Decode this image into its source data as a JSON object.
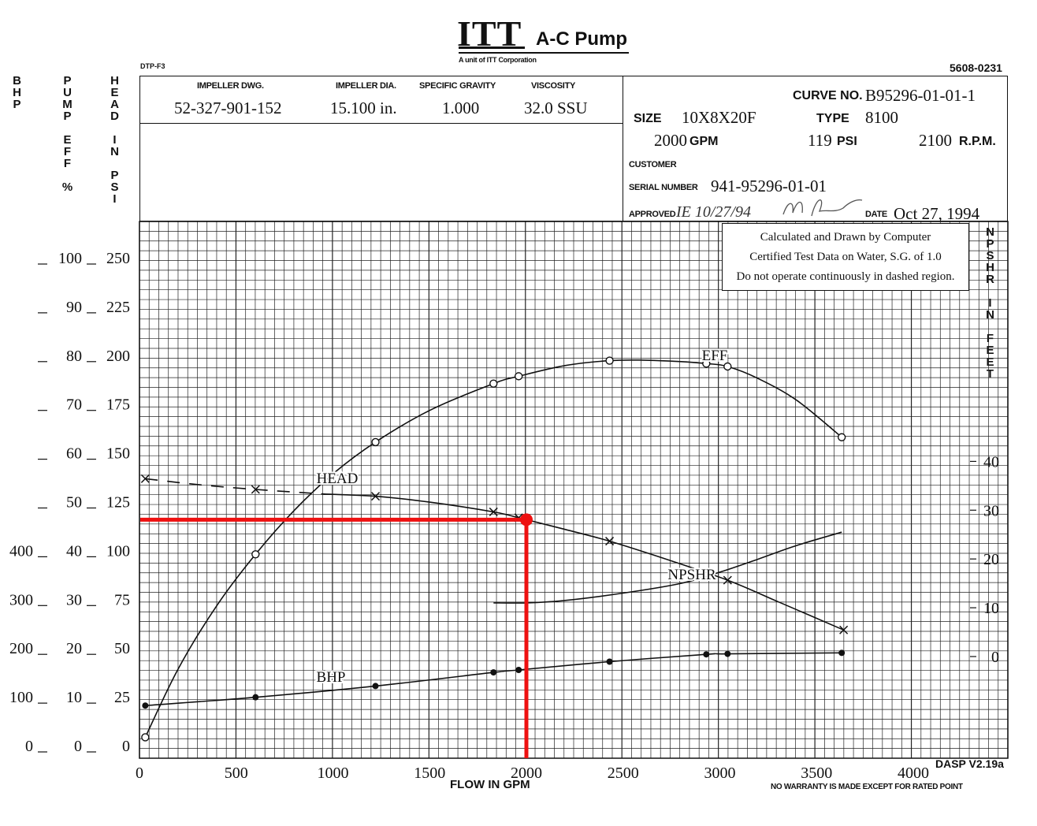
{
  "header": {
    "brand_logo": "ITT",
    "brand_name": "A-C Pump",
    "brand_tagline": "A unit of ITT Corporation",
    "form_code": "DTP-F3",
    "doc_number": "5608-0231"
  },
  "left_axis_titles": {
    "bhp": "BHP",
    "pump_eff": "PUMP EFF %",
    "head": "HEAD IN PSI"
  },
  "right_axis_title": "NPSHR IN FEET",
  "info": {
    "impeller_dwg_label": "IMPELLER DWG.",
    "impeller_dwg": "52-327-901-152",
    "impeller_dia_label": "IMPELLER DIA.",
    "impeller_dia": "15.100 in.",
    "specific_gravity_label": "SPECIFIC GRAVITY",
    "specific_gravity": "1.000",
    "viscosity_label": "VISCOSITY",
    "viscosity": "32.0 SSU",
    "curve_no_label": "CURVE NO.",
    "curve_no": "B95296-01-01-1",
    "size_label": "SIZE",
    "size": "10X8X20F",
    "type_label": "TYPE",
    "type": "8100",
    "flow": "2000",
    "flow_unit": "GPM",
    "head": "119",
    "head_unit": "PSI",
    "speed": "2100",
    "speed_unit": "R.P.M.",
    "customer_label": "CUSTOMER",
    "serial_label": "SERIAL NUMBER",
    "serial": "941-95296-01-01",
    "approved_label": "APPROVED",
    "approved_signature": "IE 10/27/94",
    "date_label": "DATE",
    "date": "Oct 27, 1994"
  },
  "notes": {
    "line1": "Calculated and Drawn by Computer",
    "line2": "Certified Test Data on Water, S.G. of 1.0",
    "line3": "Do not operate continuously in dashed region."
  },
  "footer": {
    "xlabel": "FLOW IN GPM",
    "software": "DASP V2.19a",
    "warranty": "NO WARRANTY IS MADE EXCEPT FOR RATED POINT"
  },
  "colors": {
    "grid": "#222222",
    "curve": "#111111",
    "highlight": "#ee1111"
  },
  "chart_data": {
    "type": "line",
    "title": "",
    "xlabel": "FLOW IN GPM",
    "xlim": [
      0,
      4000
    ],
    "x_ticks": [
      0,
      500,
      1000,
      1500,
      2000,
      2500,
      3000,
      3500,
      4000
    ],
    "axes": {
      "head_psi": {
        "ylim": [
          0,
          250
        ],
        "ticks": [
          0,
          25,
          50,
          75,
          100,
          125,
          150,
          175,
          200,
          225,
          250
        ]
      },
      "eff_pct": {
        "ylim": [
          0,
          100
        ],
        "ticks": [
          0,
          10,
          20,
          30,
          40,
          50,
          60,
          70,
          80,
          90,
          100
        ]
      },
      "bhp": {
        "ylim": [
          0,
          1000
        ],
        "ticks": [
          0,
          100,
          200,
          300,
          400
        ]
      },
      "npshr_ft": {
        "ylim": [
          -20,
          100
        ],
        "ticks": [
          0,
          10,
          20,
          30,
          40
        ]
      }
    },
    "grid": true,
    "series": [
      {
        "name": "HEAD",
        "axis": "head_psi",
        "marker": "x",
        "dashed_x": [
          30,
          1000
        ],
        "x": [
          30,
          600,
          1220,
          1830,
          1960,
          2430,
          3040,
          3640
        ],
        "y": [
          140,
          134.5,
          131,
          123,
          120,
          108,
          88,
          62.5
        ],
        "curve_x": [
          30,
          300,
          600,
          900,
          1000,
          1220,
          1500,
          1830,
          1960,
          2200,
          2430,
          2700,
          3040,
          3300,
          3640
        ],
        "curve_y": [
          140,
          137,
          134.5,
          132.5,
          132,
          131,
          128,
          123,
          120,
          114,
          108,
          99.5,
          88,
          77,
          62.5
        ]
      },
      {
        "name": "EFF",
        "axis": "eff_pct",
        "marker": "o",
        "x": [
          30,
          600,
          1220,
          1830,
          1960,
          2430,
          2930,
          3040,
          3630
        ],
        "y": [
          3,
          40.5,
          63.5,
          75.5,
          77,
          80.2,
          79.6,
          79,
          64.5
        ],
        "curve_x": [
          30,
          200,
          400,
          600,
          800,
          1000,
          1220,
          1500,
          1830,
          1960,
          2200,
          2430,
          2600,
          2800,
          2930,
          3040,
          3200,
          3400,
          3630
        ],
        "curve_y": [
          3,
          17,
          30,
          40.5,
          49.5,
          57,
          63.5,
          70,
          75.5,
          77,
          79.2,
          80.2,
          80.3,
          80,
          79.6,
          79,
          76.5,
          72,
          64.5
        ]
      },
      {
        "name": "BHP",
        "axis": "bhp",
        "marker": "dot",
        "x": [
          30,
          600,
          1220,
          1830,
          1960,
          2430,
          2930,
          3040,
          3630
        ],
        "y": [
          95,
          112,
          135,
          163,
          168,
          185,
          200,
          201,
          203
        ],
        "curve_x": [
          30,
          600,
          1220,
          1830,
          1960,
          2430,
          2930,
          3040,
          3630
        ],
        "curve_y": [
          95,
          112,
          135,
          163,
          168,
          185,
          200,
          201,
          203
        ]
      },
      {
        "name": "NPSHR",
        "axis": "npshr_ft",
        "marker": "none",
        "x": [
          1830,
          2000,
          2200,
          2500,
          2800,
          3000,
          3200,
          3400,
          3630
        ],
        "y": [
          11,
          11,
          11.5,
          13,
          15,
          17.3,
          20,
          22.8,
          25.5
        ]
      }
    ],
    "rated_point": {
      "flow": 2000,
      "head": 119
    }
  }
}
